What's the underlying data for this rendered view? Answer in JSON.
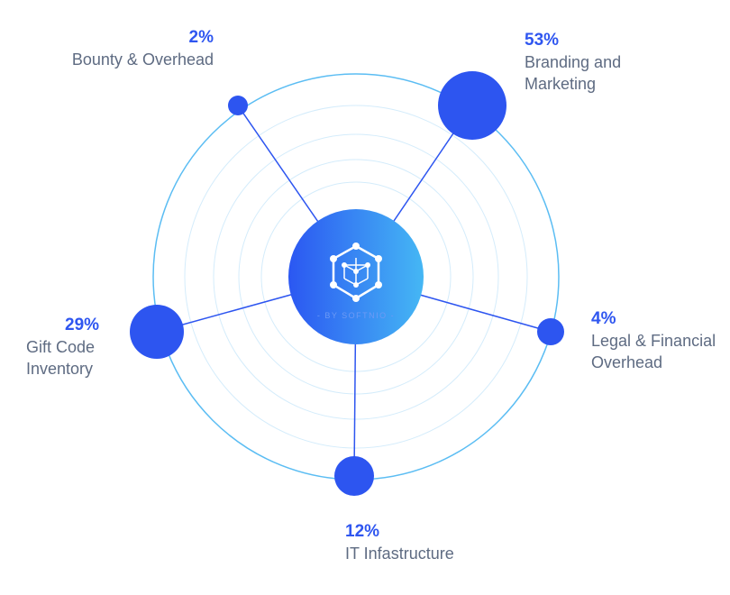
{
  "center": {
    "caption": "- BY SOFTNIO -",
    "icon": "hexagon-cube-network-icon"
  },
  "colors": {
    "node": "#2d55f0",
    "ring": "#5bbdf3",
    "gradient_start": "#2b57f2",
    "gradient_end": "#45b7f4"
  },
  "segments": [
    {
      "percent": "2%",
      "label": [
        "Bounty & Overhead"
      ],
      "value": 2
    },
    {
      "percent": "53%",
      "label": [
        "Branding and",
        "Marketing"
      ],
      "value": 53
    },
    {
      "percent": "4%",
      "label": [
        "Legal & Financial",
        "Overhead"
      ],
      "value": 4
    },
    {
      "percent": "12%",
      "label": [
        "IT Infastructure"
      ],
      "value": 12
    },
    {
      "percent": "29%",
      "label": [
        "Gift Code",
        "Inventory"
      ],
      "value": 29
    }
  ]
}
